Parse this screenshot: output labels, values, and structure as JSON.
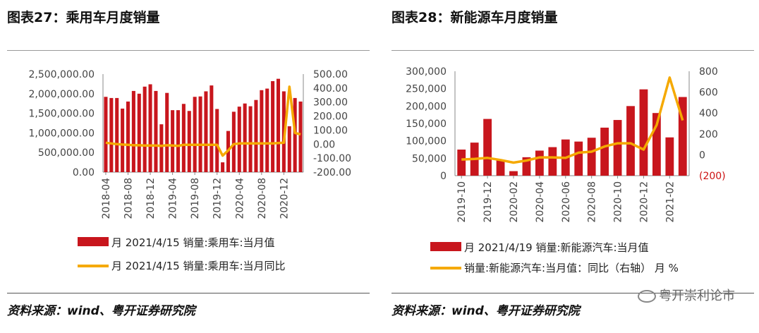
{
  "colors": {
    "bar": "#c8161d",
    "line": "#f5a900",
    "red_text": "#cc1111"
  },
  "left": {
    "title": "图表27：乘用车月度销量",
    "source": "资料来源：wind、粤开证券研究院",
    "legend_bar": "月 2021/4/15 销量:乘用车:当月值",
    "legend_line": "月 2021/4/15 销量:乘用车:当月同比",
    "left_ticks": [
      "0.00",
      "500,000.00",
      "1,000,000.00",
      "1,500,000.00",
      "2,000,000.00",
      "2,500,000.00"
    ],
    "right_ticks": [
      "-200.00",
      "-100.00",
      "0.00",
      "100.00",
      "200.00",
      "300.00",
      "400.00",
      "500.00"
    ],
    "x_ticks": [
      "2018-04",
      "2018-08",
      "2018-12",
      "2019-04",
      "2019-08",
      "2019-12",
      "2020-04",
      "2020-08",
      "2020-12"
    ]
  },
  "right": {
    "title": "图表28：新能源车月度销量",
    "source": "资料来源：wind、粤开证券研究院",
    "legend_bar": "月 2021/4/19 销量:新能源汽车:当月值",
    "legend_line": "销量:新能源汽车:当月值：同比（右轴） 月 %",
    "left_ticks": [
      "0",
      "50,000",
      "100,000",
      "150,000",
      "200,000",
      "250,000",
      "300,000"
    ],
    "right_ticks": [
      "(200)",
      "0",
      "200",
      "400",
      "600",
      "800"
    ],
    "x_ticks": [
      "2019-10",
      "2019-12",
      "2020-02",
      "2020-04",
      "2020-06",
      "2020-08",
      "2020-10",
      "2020-12",
      "2021-02"
    ],
    "watermark": "粤开崇利论市"
  },
  "chart_data": [
    {
      "type": "bar",
      "title": "图表27：乘用车月度销量",
      "xlabel": "",
      "ylabel": "",
      "ylim": [
        0,
        2500000
      ],
      "y2lim": [
        -200,
        500
      ],
      "categories": [
        "2018-04",
        "2018-05",
        "2018-06",
        "2018-07",
        "2018-08",
        "2018-09",
        "2018-10",
        "2018-11",
        "2018-12",
        "2019-01",
        "2019-02",
        "2019-03",
        "2019-04",
        "2019-05",
        "2019-06",
        "2019-07",
        "2019-08",
        "2019-09",
        "2019-10",
        "2019-11",
        "2019-12",
        "2020-01",
        "2020-02",
        "2020-03",
        "2020-04",
        "2020-05",
        "2020-06",
        "2020-07",
        "2020-08",
        "2020-09",
        "2020-10",
        "2020-11",
        "2020-12",
        "2021-01",
        "2021-02",
        "2021-03"
      ],
      "series": [
        {
          "name": "月 2021/4/15 销量:乘用车:当月值",
          "axis": "left",
          "kind": "bar",
          "values": [
            1920000,
            1890000,
            1890000,
            1620000,
            1800000,
            2070000,
            2000000,
            2180000,
            2240000,
            2070000,
            1220000,
            2020000,
            1580000,
            1580000,
            1740000,
            1560000,
            1920000,
            1930000,
            2060000,
            2210000,
            1610000,
            250000,
            1050000,
            1540000,
            1670000,
            1750000,
            1680000,
            1840000,
            2090000,
            2130000,
            2320000,
            2380000,
            2060000,
            1170000,
            1890000,
            1800000
          ]
        },
        {
          "name": "月 2021/4/15 销量:乘用车:当月同比",
          "axis": "right",
          "kind": "line",
          "values": [
            10,
            5,
            0,
            -3,
            -5,
            -8,
            -8,
            -10,
            -10,
            -10,
            -12,
            -8,
            -10,
            -12,
            -5,
            -5,
            -5,
            -5,
            -5,
            -5,
            -5,
            -82,
            -45,
            0,
            5,
            5,
            5,
            5,
            5,
            5,
            5,
            8,
            10,
            410,
            80,
            70
          ]
        }
      ]
    },
    {
      "type": "bar",
      "title": "图表28：新能源车月度销量",
      "xlabel": "",
      "ylabel": "",
      "ylim": [
        0,
        300000
      ],
      "y2lim": [
        -200,
        800
      ],
      "categories": [
        "2019-10",
        "2019-11",
        "2019-12",
        "2020-01",
        "2020-02",
        "2020-03",
        "2020-04",
        "2020-05",
        "2020-06",
        "2020-07",
        "2020-08",
        "2020-09",
        "2020-10",
        "2020-11",
        "2020-12",
        "2021-01",
        "2021-02",
        "2021-03"
      ],
      "series": [
        {
          "name": "月 2021/4/19 销量:新能源汽车:当月值",
          "axis": "left",
          "kind": "bar",
          "values": [
            75000,
            95000,
            163000,
            44000,
            13000,
            53000,
            72000,
            82000,
            104000,
            98000,
            109000,
            138000,
            160000,
            200000,
            248000,
            180000,
            110000,
            226000
          ]
        },
        {
          "name": "销量:新能源汽车:当月值：同比（右轴） 月 %",
          "axis": "right",
          "kind": "line",
          "values": [
            -45,
            -40,
            -30,
            -50,
            -75,
            -55,
            -25,
            -25,
            -30,
            20,
            30,
            80,
            110,
            110,
            50,
            285,
            740,
            330
          ]
        }
      ]
    }
  ]
}
